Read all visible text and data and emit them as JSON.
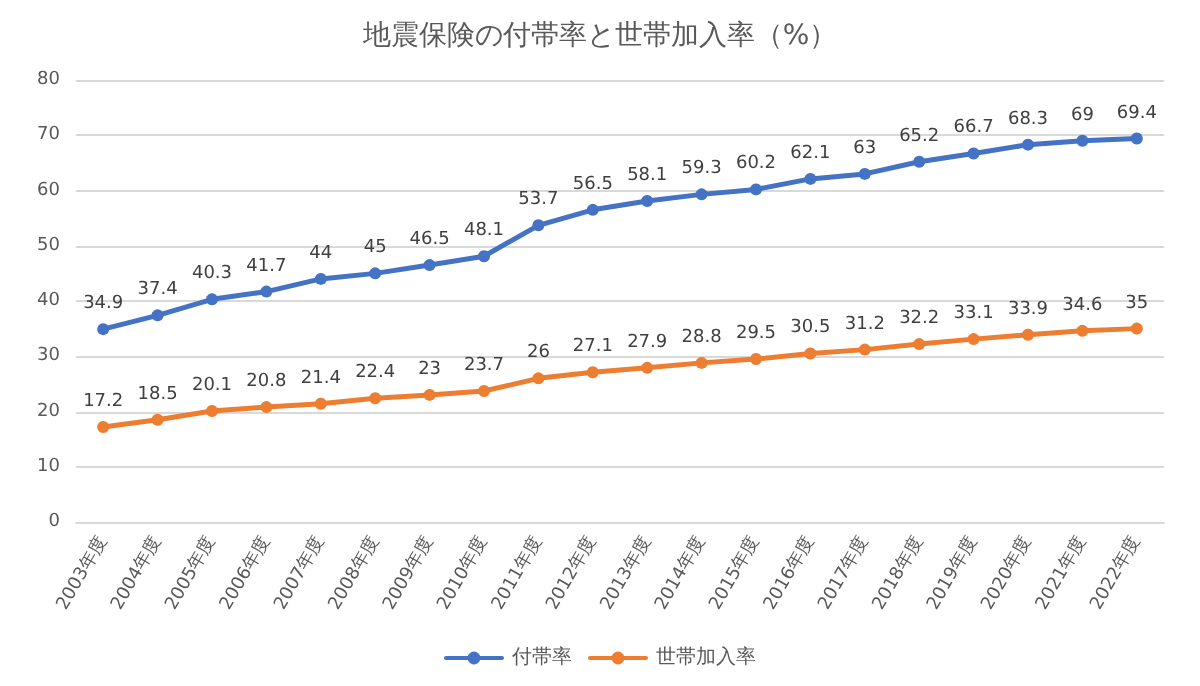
{
  "chart_data": {
    "type": "line",
    "title": "地震保険の付帯率と世帯加入率（%）",
    "categories": [
      "2003年度",
      "2004年度",
      "2005年度",
      "2006年度",
      "2007年度",
      "2008年度",
      "2009年度",
      "2010年度",
      "2011年度",
      "2012年度",
      "2013年度",
      "2014年度",
      "2015年度",
      "2016年度",
      "2017年度",
      "2018年度",
      "2019年度",
      "2020年度",
      "2021年度",
      "2022年度"
    ],
    "series": [
      {
        "name": "付帯率",
        "color": "#4472c4",
        "values": [
          34.9,
          37.4,
          40.3,
          41.7,
          44,
          45,
          46.5,
          48.1,
          53.7,
          56.5,
          58.1,
          59.3,
          60.2,
          62.1,
          63,
          65.2,
          66.7,
          68.3,
          69,
          69.4
        ]
      },
      {
        "name": "世帯加入率",
        "color": "#ed7d31",
        "values": [
          17.2,
          18.5,
          20.1,
          20.8,
          21.4,
          22.4,
          23,
          23.7,
          26,
          27.1,
          27.9,
          28.8,
          29.5,
          30.5,
          31.2,
          32.2,
          33.1,
          33.9,
          34.6,
          35
        ]
      }
    ],
    "ylim": [
      0,
      80
    ],
    "yticks": [
      0,
      10,
      20,
      30,
      40,
      50,
      60,
      70,
      80
    ],
    "grid": "y",
    "legend": "bottom",
    "marker": "circle",
    "line_style": "solid",
    "data_labels": true
  }
}
